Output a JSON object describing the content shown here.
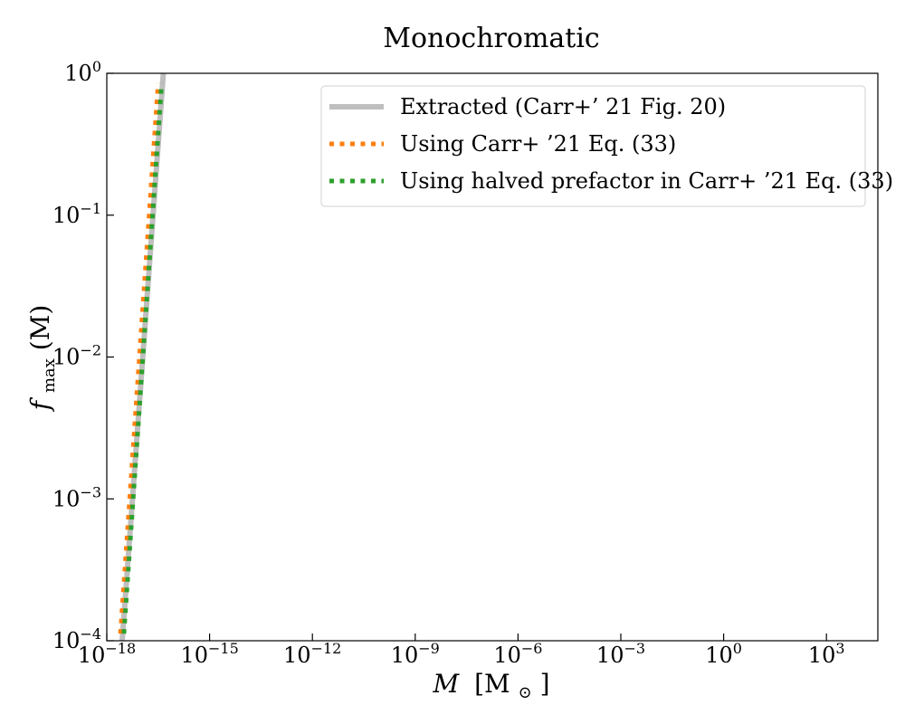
{
  "chart_data": {
    "type": "line",
    "title": "Monochromatic",
    "xlabel": {
      "main": "M",
      "unit_prefix": "[M",
      "unit_sub": "⊙",
      "unit_suffix": "]"
    },
    "ylabel": {
      "main": "f",
      "sub": "max",
      "arg": "(M)"
    },
    "x_scale": "log",
    "y_scale": "log",
    "xlim_exp": [
      -18,
      4.5
    ],
    "ylim_exp": [
      -4,
      0
    ],
    "x_ticks": [
      {
        "base": "10",
        "exp": "−18",
        "value_exp": -18
      },
      {
        "base": "10",
        "exp": "−15",
        "value_exp": -15
      },
      {
        "base": "10",
        "exp": "−12",
        "value_exp": -12
      },
      {
        "base": "10",
        "exp": "−9",
        "value_exp": -9
      },
      {
        "base": "10",
        "exp": "−6",
        "value_exp": -6
      },
      {
        "base": "10",
        "exp": "−3",
        "value_exp": -3
      },
      {
        "base": "10",
        "exp": "0",
        "value_exp": 0
      },
      {
        "base": "10",
        "exp": "3",
        "value_exp": 3
      }
    ],
    "y_ticks": [
      {
        "base": "10",
        "exp": "−4",
        "value_exp": -4
      },
      {
        "base": "10",
        "exp": "−3",
        "value_exp": -3
      },
      {
        "base": "10",
        "exp": "−2",
        "value_exp": -2
      },
      {
        "base": "10",
        "exp": "−1",
        "value_exp": -1
      },
      {
        "base": "10",
        "exp": "0",
        "value_exp": 0
      }
    ],
    "grid": false,
    "legend_position": "top-right",
    "series": [
      {
        "name": "Extracted (Carr+’ 21 Fig. 20)",
        "color": "#bfbfbf",
        "style": "solid",
        "points_log10": [
          [
            -17.55,
            -4.0
          ],
          [
            -16.35,
            0.0
          ]
        ]
      },
      {
        "name": "Using Carr+ ’21 Eq. (33)",
        "color": "#ff7f0e",
        "style": "dotted",
        "points_log10": [
          [
            -17.6,
            -3.95
          ],
          [
            -16.5,
            -0.07
          ]
        ]
      },
      {
        "name": "Using halved prefactor in Carr+ ’21 Eq. (33)",
        "color": "#2ca02c",
        "style": "dotted",
        "points_log10": [
          [
            -17.5,
            -3.95
          ],
          [
            -16.4,
            -0.07
          ]
        ]
      }
    ]
  }
}
